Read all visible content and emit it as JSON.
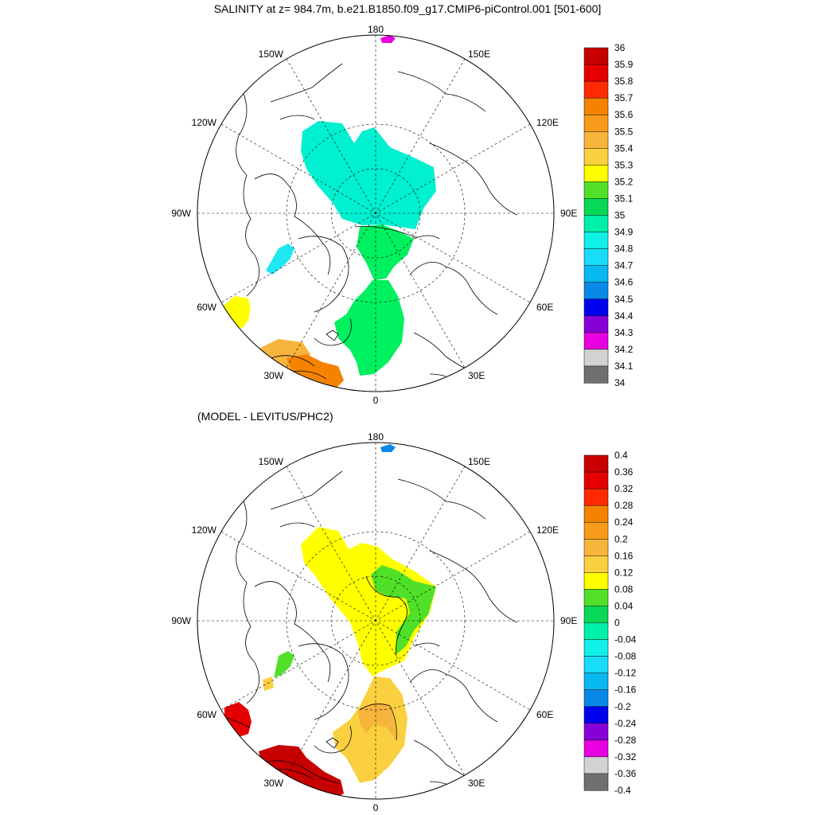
{
  "title": "SALINITY at z= 984.7m, b.e21.B1850.f09_g17.CMIP6-piControl.001 [501-600]",
  "subtitle": "(MODEL - LEVITUS/PHC2)",
  "polar_labels": {
    "top": "180",
    "bottom": "0",
    "left": "90W",
    "right": "90E",
    "nw1": "150W",
    "nw2": "120W",
    "ne1": "150E",
    "ne2": "120E",
    "sw1": "60W",
    "sw2": "30W",
    "se1": "60E",
    "se2": "30E"
  },
  "top_colorbar": {
    "labels": [
      "36",
      "35.9",
      "35.8",
      "35.7",
      "35.6",
      "35.5",
      "35.4",
      "35.3",
      "35.2",
      "35.1",
      "35",
      "34.9",
      "34.8",
      "34.7",
      "34.6",
      "34.5",
      "34.4",
      "34.3",
      "34.2",
      "34.1",
      "34"
    ],
    "colors": [
      "#c80000",
      "#e40000",
      "#ff2a00",
      "#f58300",
      "#f89b1a",
      "#f7b53c",
      "#fbd040",
      "#ffff00",
      "#50e028",
      "#08d858",
      "#00f0a8",
      "#10f0e8",
      "#18dcf8",
      "#08b8f0",
      "#0888e8",
      "#0000f0",
      "#8800d8",
      "#e800e0",
      "#d2d2d2",
      "#707070"
    ]
  },
  "bottom_colorbar": {
    "labels": [
      "0.4",
      "0.36",
      "0.32",
      "0.28",
      "0.24",
      "0.2",
      "0.16",
      "0.12",
      "0.08",
      "0.04",
      "0",
      "-0.04",
      "-0.08",
      "-0.12",
      "-0.16",
      "-0.2",
      "-0.24",
      "-0.28",
      "-0.32",
      "-0.36",
      "-0.4"
    ],
    "colors": [
      "#c80000",
      "#e40000",
      "#ff2a00",
      "#f58300",
      "#f89b1a",
      "#f7b53c",
      "#fbd040",
      "#ffff00",
      "#50e028",
      "#08d858",
      "#00f0a8",
      "#10f0e8",
      "#18dcf8",
      "#08b8f0",
      "#0888e8",
      "#0000f0",
      "#8800d8",
      "#e800e0",
      "#d2d2d2",
      "#707070"
    ]
  },
  "top_fields": {
    "canada_basin": "#00f0d0",
    "eurasia_basin": "#00f060",
    "nordic_seas": "#00f060",
    "baffin_patch": "#20e8f0",
    "labrador_patch": "#ffff00",
    "atlantic_south": "#f7b53c",
    "atlantic_deep": "#f58300",
    "pacific_dot": "#e800e0"
  },
  "bottom_fields": {
    "canada_basin": "#ffff00",
    "eurasia_green": "#50e028",
    "nordic_seas": "#fbd040",
    "nordic_core": "#f7b53c",
    "baffin_patch": "#50e028",
    "baffin_yellow": "#fbd040",
    "labrador_patch": "#e40000",
    "atlantic_south": "#c80000",
    "pacific_dot": "#0888e8"
  }
}
